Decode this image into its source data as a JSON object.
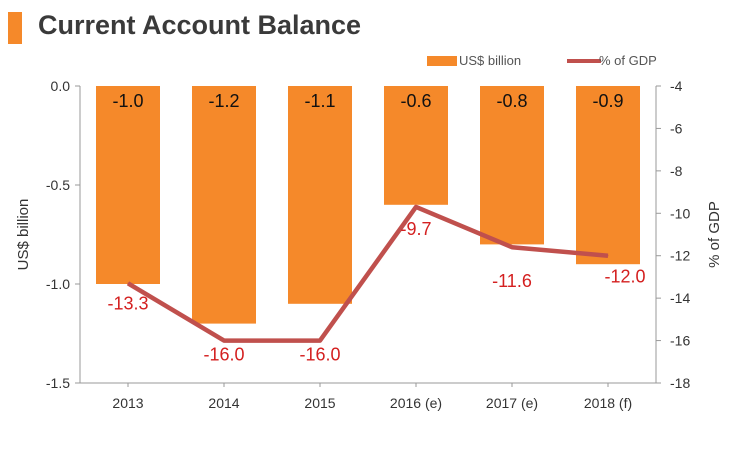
{
  "title": "Current Account Balance",
  "colors": {
    "bar": "#f5892a",
    "line": "#c0504d",
    "line_label": "#d42020",
    "axis": "#999999",
    "text": "#333333",
    "title_accent": "#f5892a"
  },
  "chart_data": {
    "type": "bar+line",
    "title": "Current Account Balance",
    "categories": [
      "2013",
      "2014",
      "2015",
      "2016 (e)",
      "2017 (e)",
      "2018 (f)"
    ],
    "series": [
      {
        "name": "US$ billion",
        "type": "bar",
        "axis": "left",
        "values": [
          -1.0,
          -1.2,
          -1.1,
          -0.6,
          -0.8,
          -0.9
        ],
        "labels": [
          "-1.0",
          "-1.2",
          "-1.1",
          "-0.6",
          "-0.8",
          "-0.9"
        ]
      },
      {
        "name": "% of GDP",
        "type": "line",
        "axis": "right",
        "values": [
          -13.3,
          -16.0,
          -16.0,
          -9.7,
          -11.6,
          -12.0
        ],
        "labels": [
          "-13.3",
          "-16.0",
          "-16.0",
          "-9.7",
          "-11.6",
          "-12.0"
        ]
      }
    ],
    "ylabel_left": "US$ billion",
    "ylabel_right": "% of GDP",
    "ylim_left": [
      -1.5,
      0.0
    ],
    "yticks_left": [
      "0.0",
      "-0.5",
      "-1.0",
      "-1.5"
    ],
    "ylim_right": [
      -18,
      -4
    ],
    "yticks_right": [
      "-4",
      "-6",
      "-8",
      "-10",
      "-12",
      "-14",
      "-16",
      "-18"
    ],
    "legend_position": "top-right",
    "grid": false
  }
}
